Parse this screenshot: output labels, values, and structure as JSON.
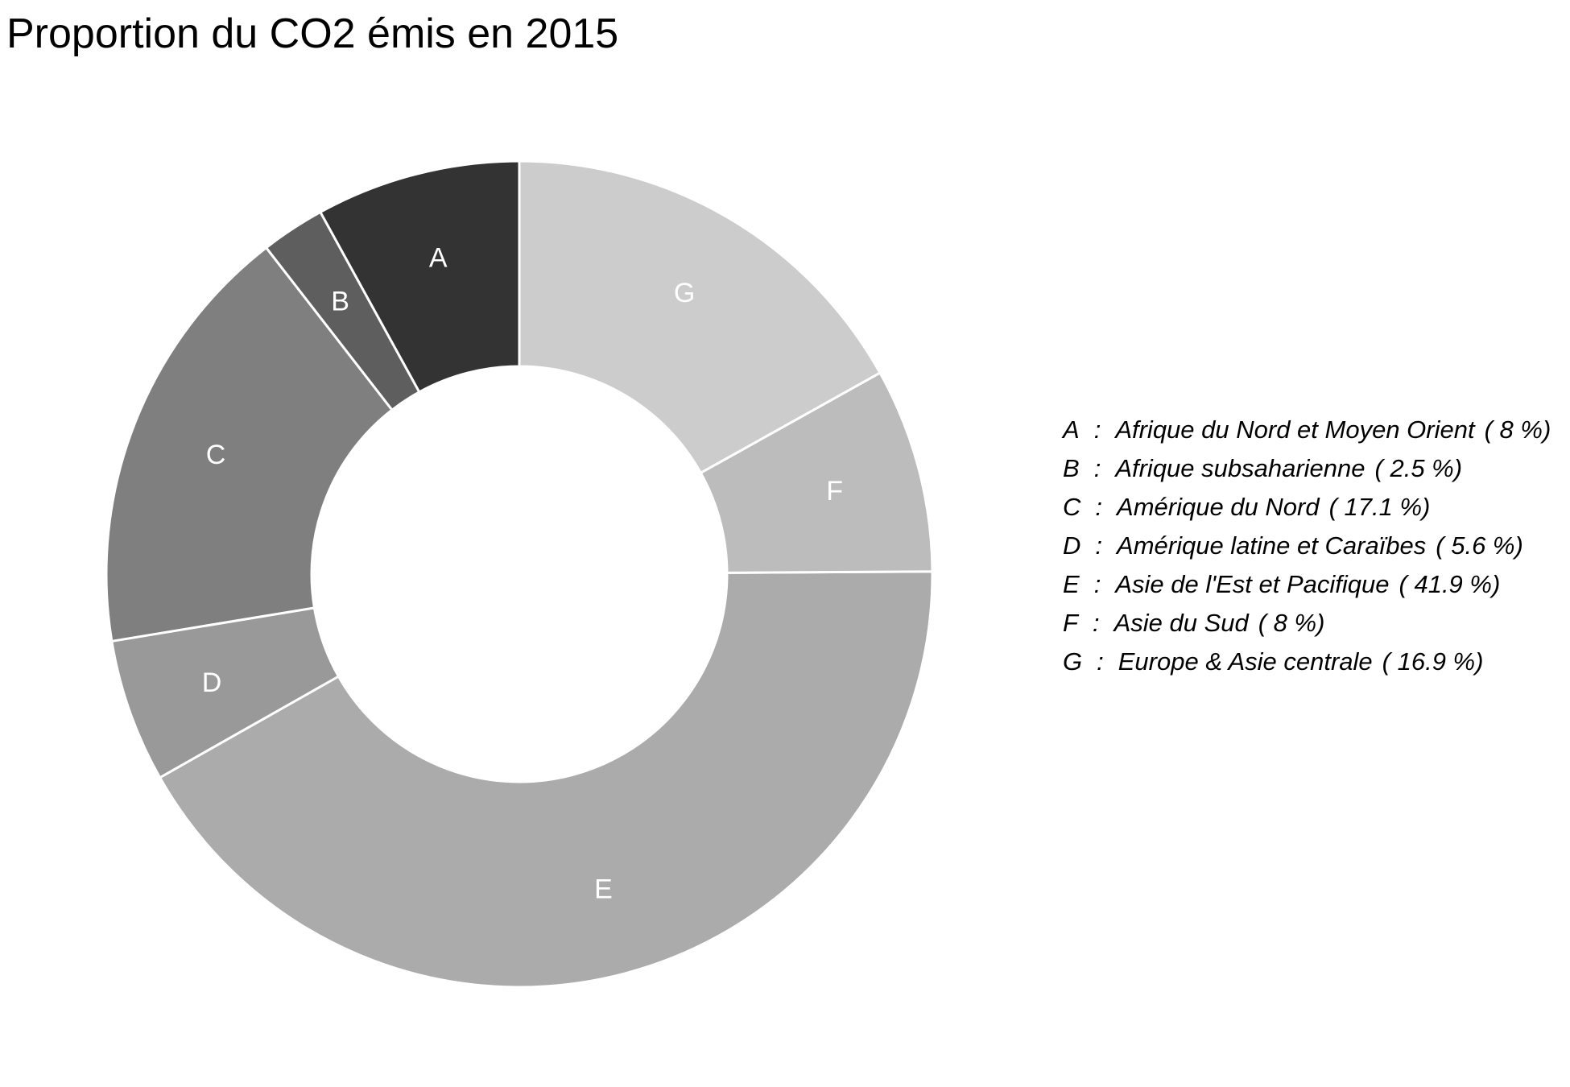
{
  "chart_data": {
    "type": "pie",
    "variant": "donut",
    "title": "Proportion du CO2 émis en 2015",
    "slices": [
      {
        "key": "A",
        "name": "Afrique du Nord et Moyen Orient",
        "value": 8,
        "pct_label": "( 8 %)",
        "color": "#333333"
      },
      {
        "key": "B",
        "name": "Afrique subsaharienne",
        "value": 2.5,
        "pct_label": "( 2.5 %)",
        "color": "#5e5e5e"
      },
      {
        "key": "C",
        "name": "Amérique du Nord",
        "value": 17.1,
        "pct_label": "( 17.1 %)",
        "color": "#7f7f7f"
      },
      {
        "key": "D",
        "name": "Amérique latine et Caraïbes",
        "value": 5.6,
        "pct_label": "( 5.6 %)",
        "color": "#999999"
      },
      {
        "key": "E",
        "name": "Asie de l'Est et Pacifique",
        "value": 41.9,
        "pct_label": "( 41.9 %)",
        "color": "#ababab"
      },
      {
        "key": "F",
        "name": "Asie du Sud",
        "value": 8,
        "pct_label": "( 8 %)",
        "color": "#bcbcbc"
      },
      {
        "key": "G",
        "name": "Europe & Asie centrale",
        "value": 16.9,
        "pct_label": "( 16.9 %)",
        "color": "#cccccc"
      }
    ],
    "legend_separator": ":",
    "legend_position": "right",
    "slice_order": "counter-clockwise from 12 o'clock"
  }
}
